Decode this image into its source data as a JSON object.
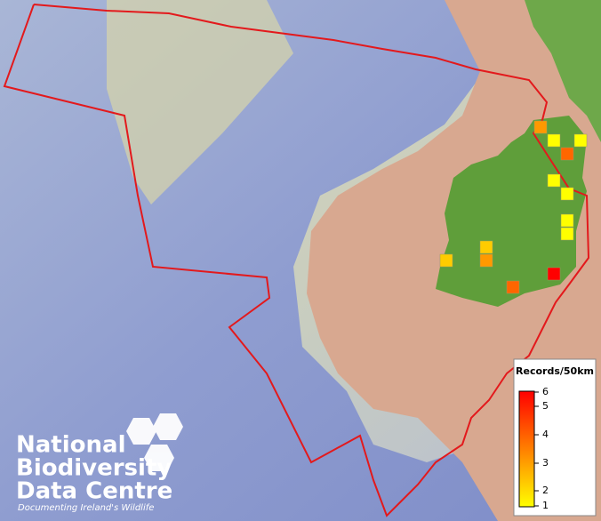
{
  "map": {
    "legend": {
      "title": "Records/50km",
      "ticks": [
        1,
        2,
        3,
        4,
        5,
        6
      ],
      "color_low": "#ffff00",
      "color_high": "#ff0000"
    },
    "boundary_color": "#e3191c",
    "records": [
      3,
      1,
      1,
      4,
      1,
      1,
      1,
      1,
      2,
      3,
      2,
      6,
      4
    ],
    "logo": {
      "line1": "National",
      "line2": "Biodiversity",
      "line3": "Data Centre",
      "tagline": "Documenting Ireland's Wildlife"
    }
  }
}
